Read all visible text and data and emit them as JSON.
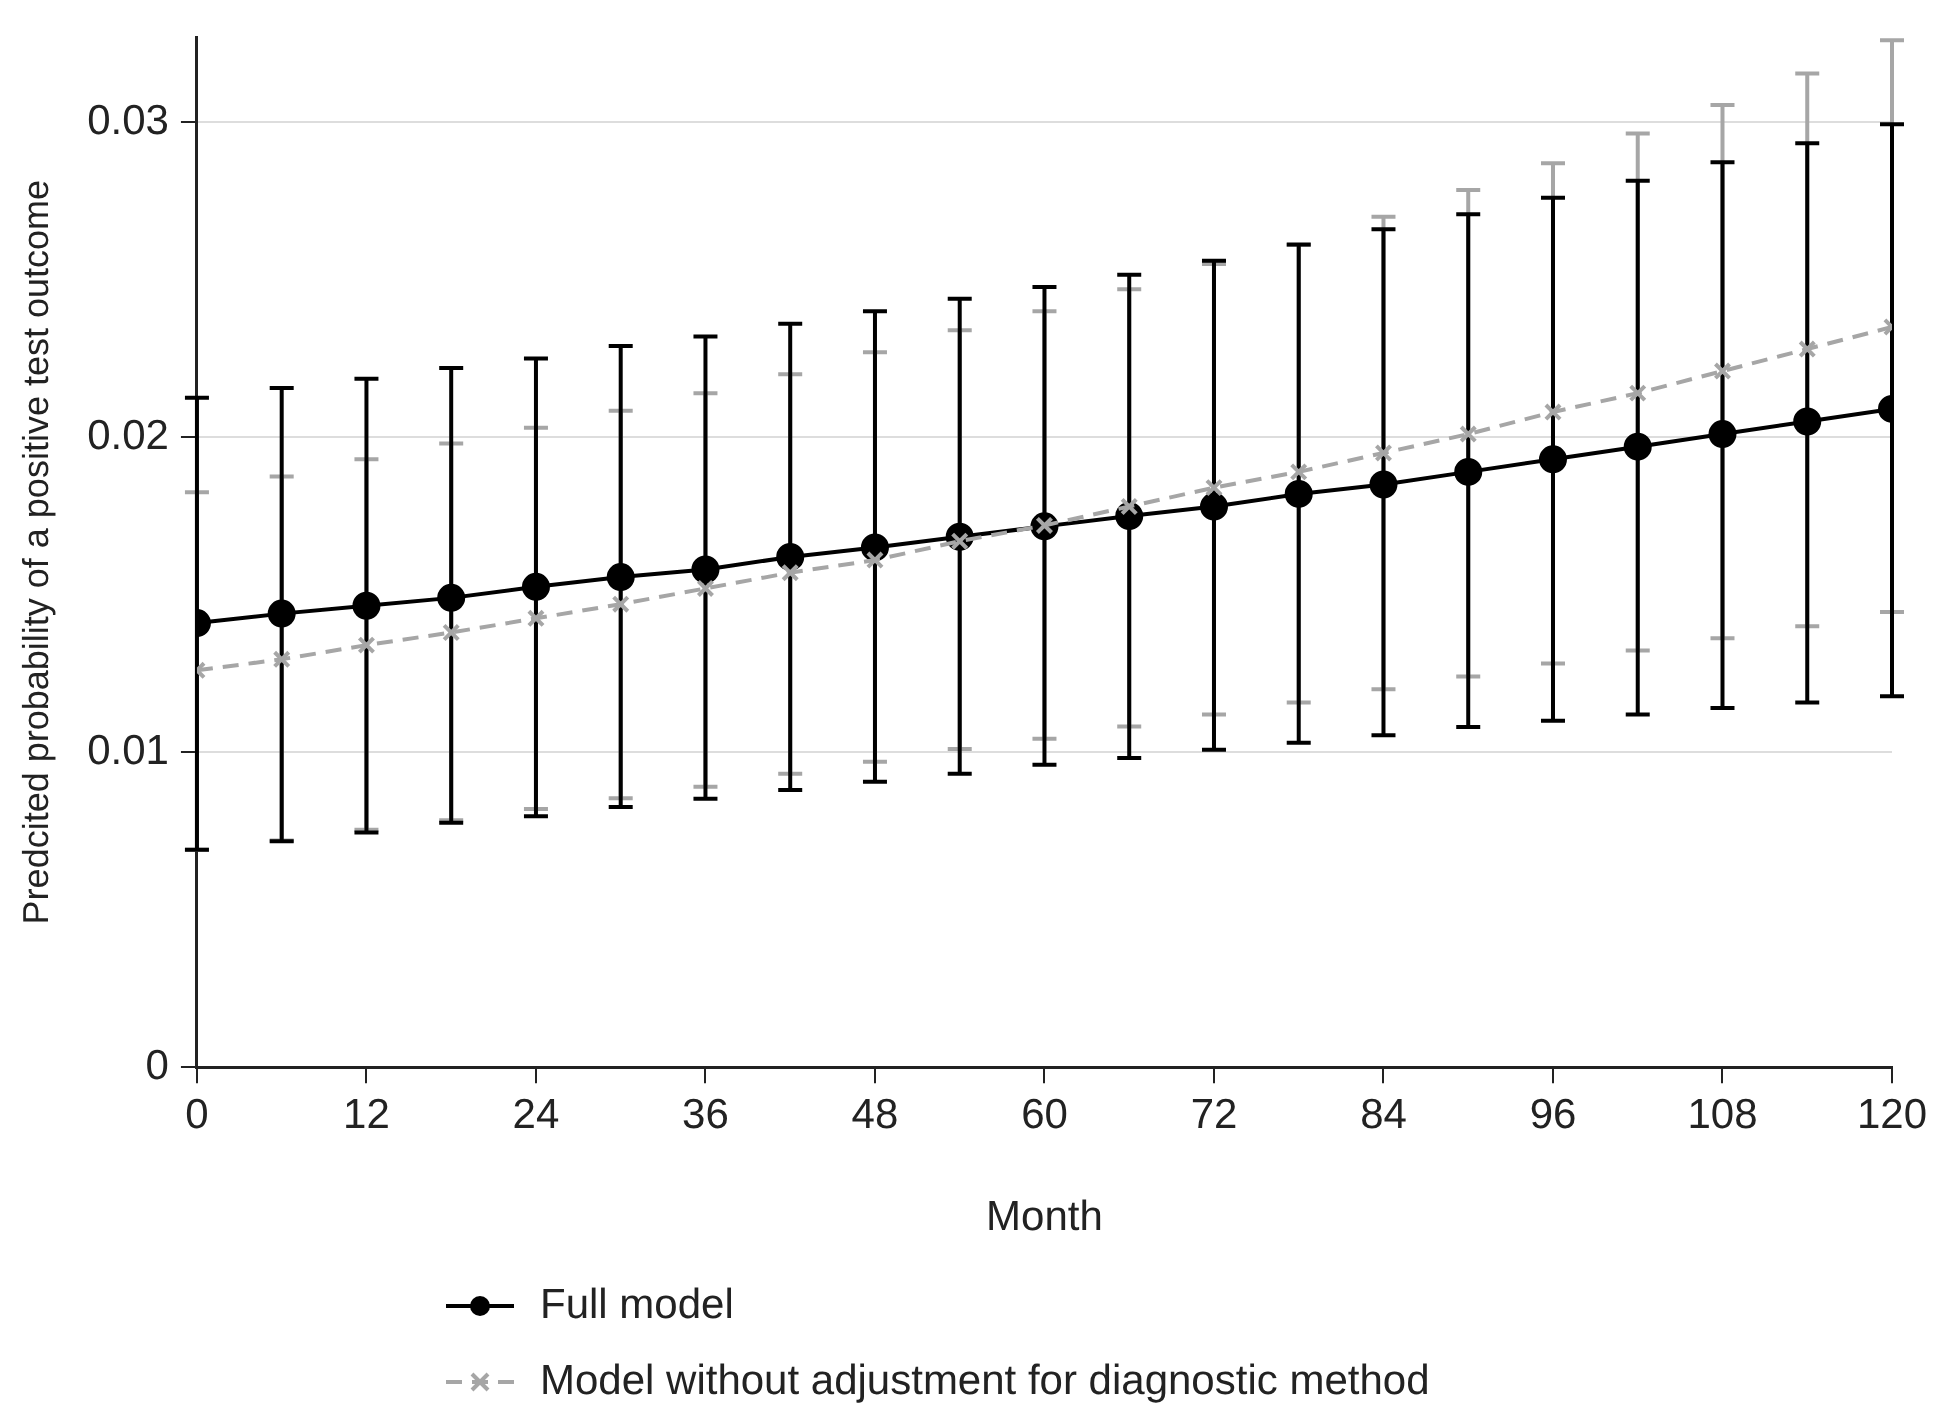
{
  "chart_data": {
    "type": "line",
    "xlabel": "Month",
    "ylabel": "Predcited probability of a positive test outcome",
    "x": [
      0,
      6,
      12,
      18,
      24,
      30,
      36,
      42,
      48,
      54,
      60,
      66,
      72,
      78,
      84,
      90,
      96,
      102,
      108,
      114,
      120
    ],
    "xlim": [
      0,
      120
    ],
    "xticks": [
      0,
      12,
      24,
      36,
      48,
      60,
      72,
      84,
      96,
      108,
      120
    ],
    "ylim": [
      0,
      0.0327
    ],
    "yticks": [
      0,
      0.01,
      0.02,
      0.03
    ],
    "grid": "y",
    "legend": "bottom",
    "series": [
      {
        "name": "Full model",
        "color": "#000000",
        "marker": "circle",
        "line_style": "solid",
        "values": [
          0.0141,
          0.0144,
          0.01465,
          0.0149,
          0.01525,
          0.01556,
          0.0158,
          0.0162,
          0.0165,
          0.01684,
          0.01717,
          0.0175,
          0.0178,
          0.0182,
          0.0185,
          0.0189,
          0.0193,
          0.0197,
          0.0201,
          0.0205,
          0.0209
        ],
        "errors": [
          [
            0.0069,
            0.02125
          ],
          [
            0.00717,
            0.02156
          ],
          [
            0.00745,
            0.02186
          ],
          [
            0.00776,
            0.0222
          ],
          [
            0.00797,
            0.0225
          ],
          [
            0.00826,
            0.0229
          ],
          [
            0.00852,
            0.0232
          ],
          [
            0.0088,
            0.0236
          ],
          [
            0.00906,
            0.024
          ],
          [
            0.00932,
            0.0244
          ],
          [
            0.0096,
            0.02477
          ],
          [
            0.00982,
            0.02516
          ],
          [
            0.01008,
            0.0256
          ],
          [
            0.0103,
            0.02612
          ],
          [
            0.01054,
            0.0266
          ],
          [
            0.0108,
            0.02708
          ],
          [
            0.011,
            0.0276
          ],
          [
            0.0112,
            0.02814
          ],
          [
            0.0114,
            0.02873
          ],
          [
            0.01158,
            0.02933
          ],
          [
            0.01178,
            0.02994
          ]
        ]
      },
      {
        "name": "Model without adjustment for diagnostic method",
        "color": "#a6a6a6",
        "marker": "cross",
        "line_style": "dashed",
        "values": [
          0.0126,
          0.01295,
          0.0134,
          0.0138,
          0.01425,
          0.0147,
          0.0152,
          0.0157,
          0.0161,
          0.0167,
          0.0172,
          0.0178,
          0.0184,
          0.0189,
          0.0195,
          0.0201,
          0.0208,
          0.0214,
          0.0221,
          0.0228,
          0.0235
        ],
        "errors": [
          [
            0.0069,
            0.01825
          ],
          [
            0.0072,
            0.01875
          ],
          [
            0.00754,
            0.0193
          ],
          [
            0.00784,
            0.0198
          ],
          [
            0.0082,
            0.0203
          ],
          [
            0.00854,
            0.02084
          ],
          [
            0.0089,
            0.0214
          ],
          [
            0.00932,
            0.022
          ],
          [
            0.0097,
            0.0227
          ],
          [
            0.0101,
            0.0234
          ],
          [
            0.01043,
            0.024
          ],
          [
            0.01082,
            0.0247
          ],
          [
            0.0112,
            0.0255
          ],
          [
            0.01158,
            0.0261
          ],
          [
            0.012,
            0.027
          ],
          [
            0.0124,
            0.02785
          ],
          [
            0.01282,
            0.0287
          ],
          [
            0.01323,
            0.02964
          ],
          [
            0.01362,
            0.03055
          ],
          [
            0.014,
            0.03155
          ],
          [
            0.01445,
            0.0326
          ]
        ]
      }
    ]
  }
}
